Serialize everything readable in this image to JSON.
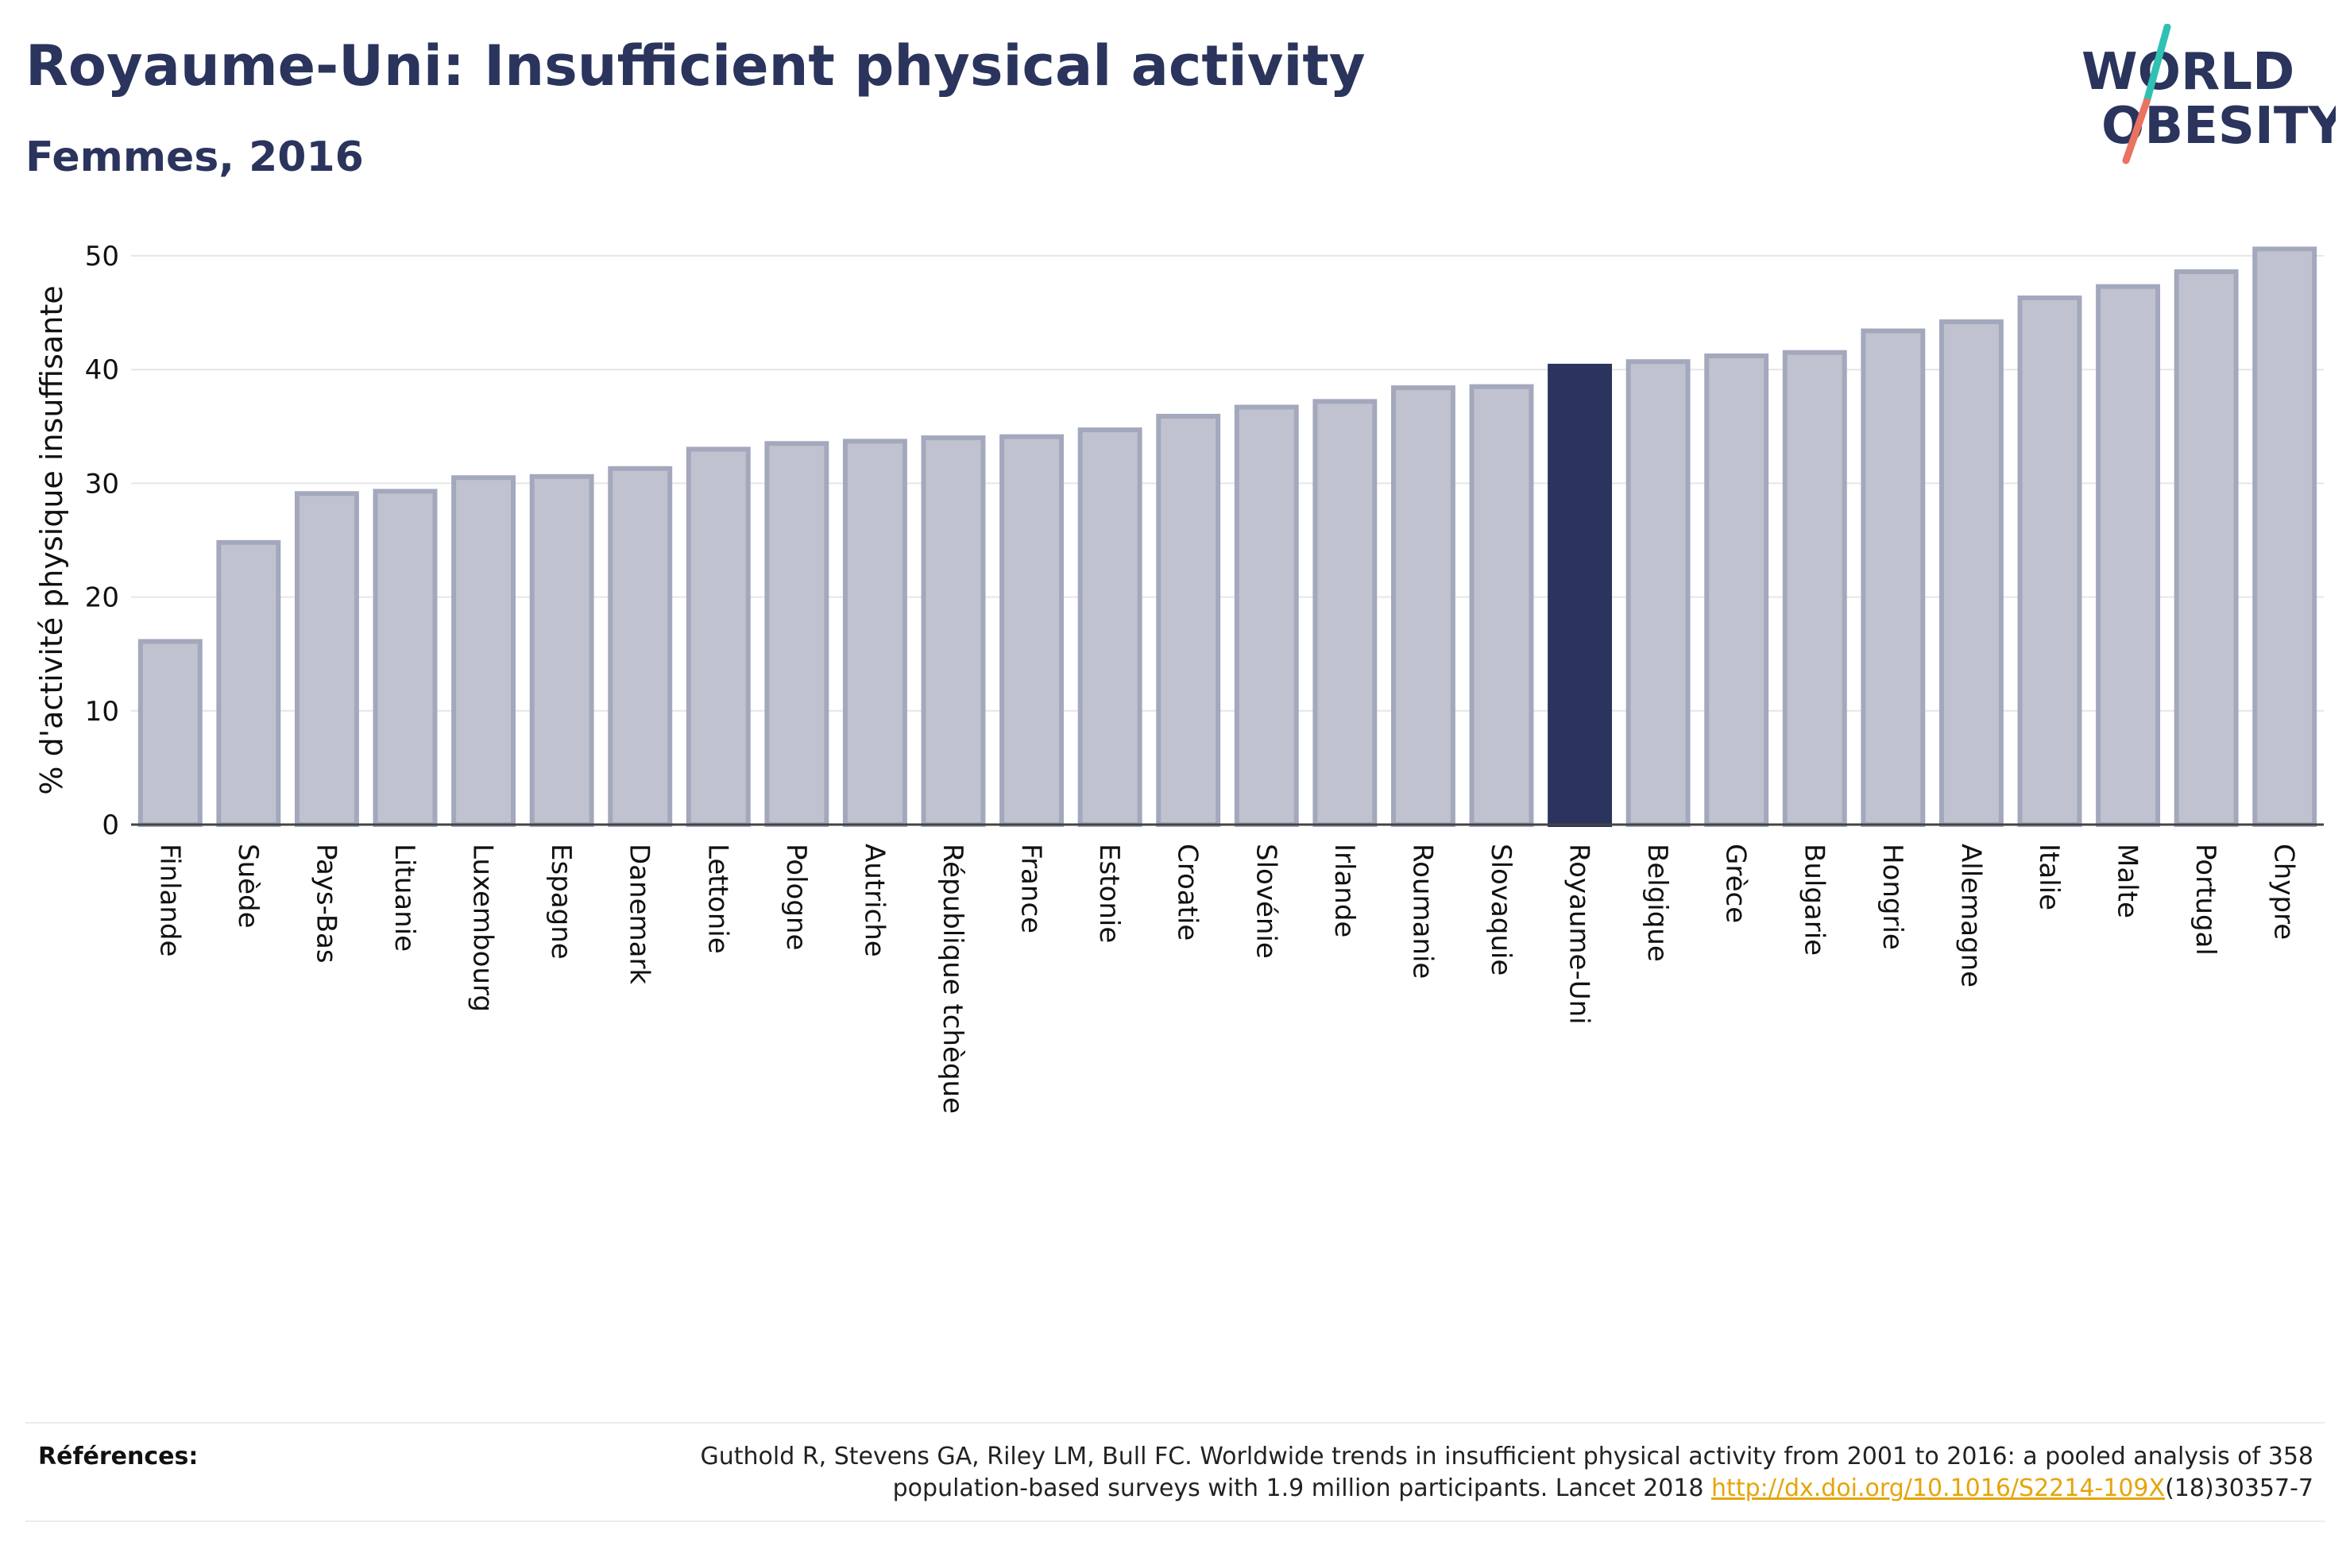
{
  "header": {
    "title": "Royaume-Uni: Insufficient physical activity",
    "subtitle": "Femmes, 2016"
  },
  "logo": {
    "line1": "WORLD",
    "line2": "OBESITY",
    "accent_teal": "#2fc1b4",
    "accent_coral": "#e9735f",
    "color": "#2a345c"
  },
  "chart_data": {
    "type": "bar",
    "title": "Royaume-Uni: Insufficient physical activity",
    "subtitle": "Femmes, 2016",
    "xlabel": "",
    "ylabel": "% d'activité physique insuffisante",
    "ylim": [
      0,
      50
    ],
    "yticks": [
      0,
      10,
      20,
      30,
      40,
      50
    ],
    "grid": true,
    "highlight": "Royaume-Uni",
    "colors": {
      "bar": "#c0c3cf",
      "bar_border": "#a3a8bd",
      "highlight": "#2a345c"
    },
    "categories": [
      "Finlande",
      "Suède",
      "Pays-Bas",
      "Lituanie",
      "Luxembourg",
      "Espagne",
      "Danemark",
      "Lettonie",
      "Pologne",
      "Autriche",
      "République tchèque",
      "France",
      "Estonie",
      "Croatie",
      "Slovénie",
      "Irlande",
      "Roumanie",
      "Slovaquie",
      "Royaume-Uni",
      "Belgique",
      "Grèce",
      "Bulgarie",
      "Hongrie",
      "Allemagne",
      "Italie",
      "Malte",
      "Portugal",
      "Chypre"
    ],
    "values": [
      16.1,
      24.8,
      29.1,
      29.3,
      30.5,
      30.6,
      31.3,
      33.0,
      33.5,
      33.7,
      34.0,
      34.1,
      34.7,
      35.9,
      36.7,
      37.2,
      38.4,
      38.5,
      40.3,
      40.7,
      41.2,
      41.5,
      43.4,
      44.2,
      46.3,
      47.3,
      48.6,
      50.6
    ]
  },
  "references": {
    "label": "Références:",
    "text_before": "Guthold R, Stevens GA, Riley LM, Bull FC. Worldwide trends in insufficient physical activity from 2001 to 2016: a pooled analysis of 358 population-based surveys with 1.9 million participants. Lancet 2018 ",
    "link": "http://dx.doi.org/10.1016/S2214-109X",
    "text_after": "(18)30357-7"
  }
}
